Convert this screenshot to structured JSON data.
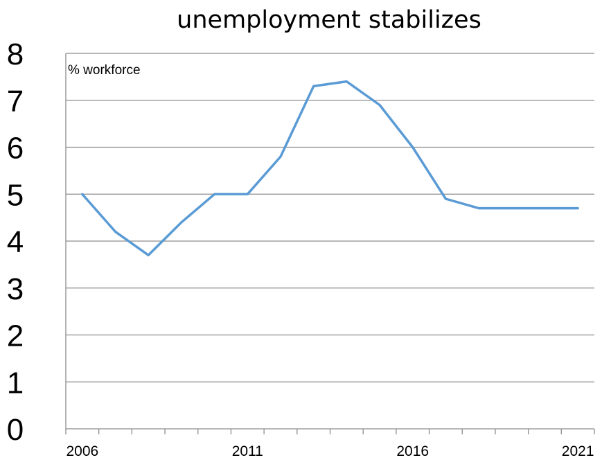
{
  "chart_data": {
    "type": "line",
    "title": "unemployment stabilizes",
    "unit_label": "% workforce",
    "xlabel": "",
    "ylabel": "",
    "x": [
      2006,
      2007,
      2008,
      2009,
      2010,
      2011,
      2012,
      2013,
      2014,
      2015,
      2016,
      2017,
      2018,
      2019,
      2020,
      2021
    ],
    "x_tick_labels": [
      "2006",
      "2011",
      "2016",
      "2021"
    ],
    "x_tick_values": [
      2006,
      2011,
      2016,
      2021
    ],
    "y_tick_labels": [
      "0",
      "1",
      "2",
      "3",
      "4",
      "5",
      "6",
      "7",
      "8"
    ],
    "ylim": [
      0,
      8
    ],
    "grid": true,
    "series": [
      {
        "values": [
          5.0,
          4.2,
          3.7,
          4.4,
          5.0,
          5.0,
          5.8,
          7.3,
          7.4,
          6.9,
          6.0,
          4.9,
          4.7,
          4.7,
          4.7,
          4.7
        ],
        "color": "#5b9bd5"
      }
    ]
  }
}
